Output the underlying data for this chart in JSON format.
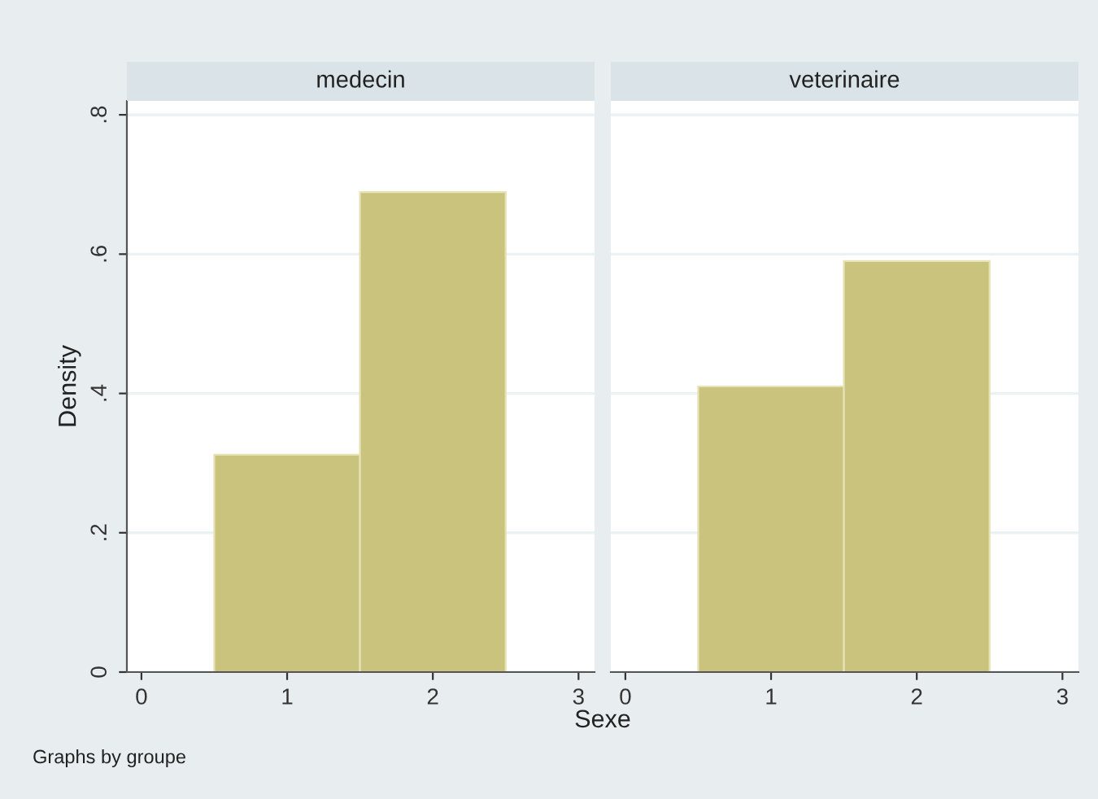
{
  "chart_data": [
    {
      "type": "histogram",
      "title": "medecin",
      "xlabel": "Sexe",
      "ylabel": "Density",
      "annotations": [
        "Graphs by groupe"
      ],
      "bins": [
        0.5,
        1.5,
        2.5
      ],
      "values": [
        0.312,
        0.689
      ],
      "color": "#c9c37d",
      "xlim": [
        -0.1,
        3.11
      ],
      "xticks": [
        0,
        1,
        2,
        3
      ],
      "ylim": [
        0,
        0.82
      ],
      "yticks": [
        0,
        {
          "value": 0.2,
          "label": ".2"
        },
        {
          "value": 0.4,
          "label": ".4"
        },
        {
          "value": 0.6,
          "label": ".6"
        },
        {
          "value": 0.8,
          "label": ".8"
        }
      ],
      "grid": "y"
    },
    {
      "type": "histogram",
      "title": "veterinaire",
      "bins": [
        0.5,
        1.5,
        2.5
      ],
      "values": [
        0.41,
        0.59
      ],
      "color": "#c9c37d",
      "xlim": [
        -0.1,
        3.11
      ],
      "xticks": [
        0,
        1,
        2,
        3
      ],
      "ylim": [
        0,
        0.82
      ],
      "yticks": [
        {
          "value": 0,
          "label": null
        },
        {
          "value": 0.2,
          "label": null
        },
        {
          "value": 0.4,
          "label": null
        },
        {
          "value": 0.6,
          "label": null
        },
        {
          "value": 0.8,
          "label": null
        }
      ],
      "grid": "y",
      "tick_labels": "x"
    }
  ]
}
